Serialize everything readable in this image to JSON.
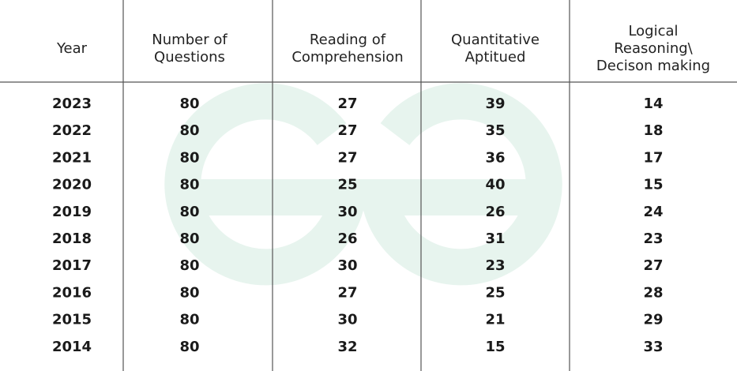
{
  "table": {
    "headers": [
      [
        "Year"
      ],
      [
        "Number of",
        "Questions"
      ],
      [
        "Reading of",
        "Comprehension"
      ],
      [
        "Quantitative",
        "Aptitued"
      ],
      [
        "Logical",
        "Reasoning\\",
        "Decison making"
      ]
    ],
    "rows": [
      [
        2023,
        80,
        27,
        39,
        14
      ],
      [
        2022,
        80,
        27,
        35,
        18
      ],
      [
        2021,
        80,
        27,
        36,
        17
      ],
      [
        2020,
        80,
        25,
        40,
        15
      ],
      [
        2019,
        80,
        30,
        26,
        24
      ],
      [
        2018,
        80,
        26,
        31,
        23
      ],
      [
        2017,
        80,
        30,
        23,
        27
      ],
      [
        2016,
        80,
        27,
        25,
        28
      ],
      [
        2015,
        80,
        30,
        21,
        29
      ],
      [
        2014,
        80,
        32,
        15,
        33
      ]
    ]
  }
}
